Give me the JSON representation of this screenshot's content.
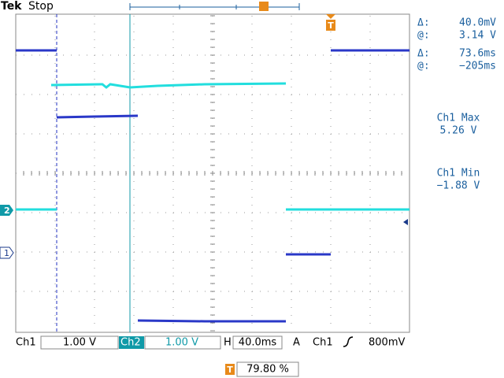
{
  "header": {
    "brand": "Tek",
    "status": "Stop"
  },
  "readouts": [
    {
      "symbol": "Δ:",
      "value": "40.0mV"
    },
    {
      "symbol": "@:",
      "value": "3.14 V"
    },
    {
      "symbol": "Δ:",
      "value": "73.6ms"
    },
    {
      "symbol": "@:",
      "value": "−205ms"
    }
  ],
  "measurements": [
    {
      "label": "Ch1 Max",
      "value": "5.26 V"
    },
    {
      "label": "Ch1 Min",
      "value": "−1.88 V"
    }
  ],
  "markers": {
    "ch1": "1",
    "ch2": "2",
    "trigger": "T"
  },
  "status_bar": {
    "ch1_label": "Ch1",
    "ch1_scale": "1.00 V",
    "ch2_label": "Ch2",
    "ch2_scale": "1.00 V",
    "h_label": "H",
    "h_scale": "40.0ms",
    "trigger_mode": "A",
    "trigger_source": "Ch1",
    "trigger_level": "800mV"
  },
  "trigger_position": "79.80 %"
}
